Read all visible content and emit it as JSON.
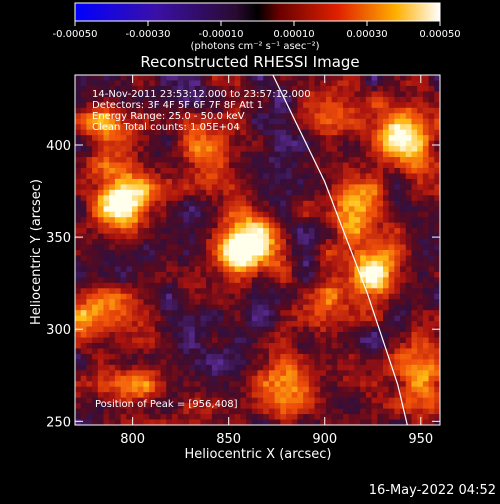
{
  "colorbar": {
    "ticks": [
      "-0.00050",
      "-0.00030",
      "-0.00010",
      "0.00010",
      "0.00030",
      "0.00050"
    ],
    "tick_values": [
      -0.0005,
      -0.0003,
      -0.0001,
      0.0001,
      0.0003,
      0.0005
    ],
    "unit_label": "(photons cm⁻² s⁻¹ asec⁻²)"
  },
  "chart_data": {
    "type": "heatmap",
    "title": "Reconstructed RHESSI Image",
    "xlabel": "Heliocentric X (arcsec)",
    "ylabel": "Heliocentric Y (arcsec)",
    "xlim": [
      770,
      960
    ],
    "ylim": [
      248,
      438
    ],
    "x_ticks": [
      800,
      850,
      900,
      950
    ],
    "y_ticks": [
      250,
      300,
      350,
      400
    ],
    "value_range": [
      -0.0005,
      0.0005
    ],
    "colormap": [
      "#0000ff",
      "#3d0a8a",
      "#6a2ab0",
      "#3a0a2a",
      "#b01010",
      "#ff5a00",
      "#ffc000",
      "#ffffff"
    ],
    "annotations": [
      "14-Nov-2011 23:53:12.000 to 23:57:12.000",
      "Detectors: 3F 4F 5F 6F 7F 8F  Att 1",
      "Energy Range: 25.0 - 50.0 keV",
      "Clean     Total counts: 1.05E+04"
    ],
    "peak_label": "Position of Peak = [956,408]",
    "peak_position": [
      956,
      408
    ],
    "bright_regions": [
      {
        "x": 860,
        "y": 345,
        "strength": 1.0
      },
      {
        "x": 795,
        "y": 370,
        "strength": 0.9
      },
      {
        "x": 940,
        "y": 405,
        "strength": 0.9
      },
      {
        "x": 925,
        "y": 330,
        "strength": 0.8
      },
      {
        "x": 915,
        "y": 365,
        "strength": 0.55
      },
      {
        "x": 790,
        "y": 410,
        "strength": 0.5
      },
      {
        "x": 780,
        "y": 310,
        "strength": 0.55
      },
      {
        "x": 800,
        "y": 270,
        "strength": 0.45
      },
      {
        "x": 880,
        "y": 270,
        "strength": 0.45
      },
      {
        "x": 950,
        "y": 275,
        "strength": 0.5
      },
      {
        "x": 840,
        "y": 395,
        "strength": 0.4
      },
      {
        "x": 905,
        "y": 420,
        "strength": 0.4
      },
      {
        "x": 895,
        "y": 310,
        "strength": 0.35
      }
    ],
    "limb_curve": [
      [
        873,
        438
      ],
      [
        900,
        380
      ],
      [
        922,
        320
      ],
      [
        938,
        270
      ],
      [
        943,
        248
      ]
    ]
  },
  "footer": {
    "timestamp": "16-May-2022 04:52"
  }
}
